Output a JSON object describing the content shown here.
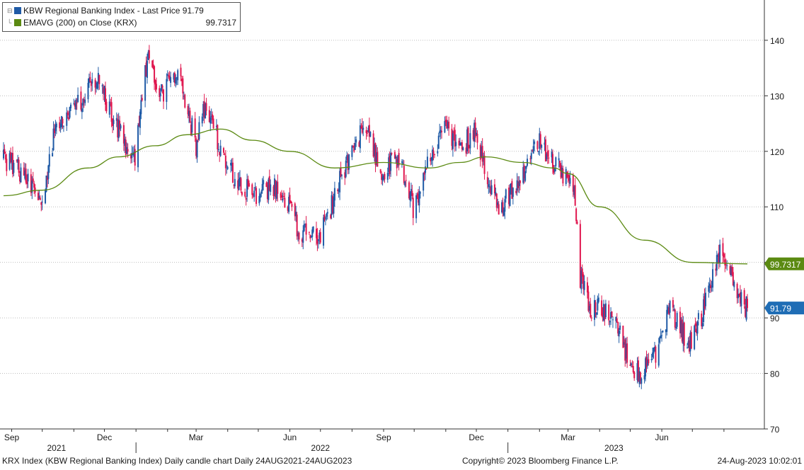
{
  "legend": {
    "price_label": "KBW Regional Banking Index - Last Price 91.79",
    "ema_label": "EMAVG (200)  on Close (KRX)",
    "ema_value": "99.7317"
  },
  "colors": {
    "up": "#1f5aa6",
    "down": "#e0174f",
    "ema": "#5b8a12",
    "last_price_tag": "#1f6db5",
    "ema_tag": "#5b8a12",
    "grid": "#bfbfbf"
  },
  "footer": {
    "left": "KRX Index (KBW Regional Banking Index) Daily candle chart  Daily 24AUG2021-24AUG2023",
    "center": "Copyright© 2023 Bloomberg Finance L.P.",
    "right": "24-Aug-2023 10:02:01"
  },
  "chart_data": {
    "type": "candlestick",
    "period": "Daily 24AUG2021-24AUG2023",
    "title": "",
    "xlabel": "",
    "ylabel": "",
    "ylim": [
      70,
      147
    ],
    "y_ticks": [
      70,
      80,
      90,
      110,
      120,
      130,
      140
    ],
    "y_tick_labels": [
      "70",
      "80",
      "90",
      "110",
      "120",
      "130",
      "140"
    ],
    "grid": "horizontal dotted",
    "axis_side": "right",
    "x_range": [
      "2021-08-24",
      "2023-08-24"
    ],
    "x_month_ticks": [
      {
        "label": "Sep",
        "date": "2021-09-01"
      },
      {
        "label": "Dec",
        "date": "2021-12-01"
      },
      {
        "label": "Mar",
        "date": "2022-03-01"
      },
      {
        "label": "Jun",
        "date": "2022-06-01"
      },
      {
        "label": "Sep",
        "date": "2022-09-01"
      },
      {
        "label": "Dec",
        "date": "2022-12-01"
      },
      {
        "label": "Mar",
        "date": "2023-03-01"
      },
      {
        "label": "Jun",
        "date": "2023-06-01"
      }
    ],
    "x_year_labels": [
      {
        "label": "2021",
        "date": "2021-10-15"
      },
      {
        "label": "2022",
        "date": "2022-07-01"
      },
      {
        "label": "2023",
        "date": "2023-04-15"
      }
    ],
    "x_year_dividers": [
      "2022-01-01",
      "2023-01-01"
    ],
    "price_path": [
      {
        "date": "2021-08-24",
        "close": 119
      },
      {
        "date": "2021-09-10",
        "close": 116
      },
      {
        "date": "2021-09-30",
        "close": 111
      },
      {
        "date": "2021-10-15",
        "close": 125
      },
      {
        "date": "2021-11-05",
        "close": 129
      },
      {
        "date": "2021-11-25",
        "close": 133
      },
      {
        "date": "2021-12-10",
        "close": 126
      },
      {
        "date": "2021-12-30",
        "close": 118
      },
      {
        "date": "2022-01-12",
        "close": 137
      },
      {
        "date": "2022-01-25",
        "close": 130
      },
      {
        "date": "2022-02-10",
        "close": 135
      },
      {
        "date": "2022-03-01",
        "close": 121
      },
      {
        "date": "2022-03-10",
        "close": 128
      },
      {
        "date": "2022-04-01",
        "close": 117
      },
      {
        "date": "2022-04-25",
        "close": 112
      },
      {
        "date": "2022-05-20",
        "close": 114
      },
      {
        "date": "2022-06-10",
        "close": 106
      },
      {
        "date": "2022-06-30",
        "close": 104
      },
      {
        "date": "2022-07-15",
        "close": 112
      },
      {
        "date": "2022-08-05",
        "close": 122
      },
      {
        "date": "2022-08-15",
        "close": 125
      },
      {
        "date": "2022-08-30",
        "close": 116
      },
      {
        "date": "2022-09-15",
        "close": 119
      },
      {
        "date": "2022-09-30",
        "close": 110
      },
      {
        "date": "2022-10-15",
        "close": 118
      },
      {
        "date": "2022-11-01",
        "close": 124
      },
      {
        "date": "2022-11-15",
        "close": 120
      },
      {
        "date": "2022-11-30",
        "close": 124
      },
      {
        "date": "2022-12-10",
        "close": 116
      },
      {
        "date": "2022-12-22",
        "close": 110
      },
      {
        "date": "2023-01-15",
        "close": 115
      },
      {
        "date": "2023-01-31",
        "close": 122
      },
      {
        "date": "2023-02-15",
        "close": 118
      },
      {
        "date": "2023-03-07",
        "close": 114
      },
      {
        "date": "2023-03-13",
        "close": 97
      },
      {
        "date": "2023-03-22",
        "close": 92
      },
      {
        "date": "2023-04-15",
        "close": 91
      },
      {
        "date": "2023-05-04",
        "close": 79
      },
      {
        "date": "2023-05-25",
        "close": 83
      },
      {
        "date": "2023-06-10",
        "close": 92
      },
      {
        "date": "2023-06-27",
        "close": 85
      },
      {
        "date": "2023-07-10",
        "close": 90
      },
      {
        "date": "2023-07-27",
        "close": 102
      },
      {
        "date": "2023-08-05",
        "close": 100
      },
      {
        "date": "2023-08-14",
        "close": 94
      },
      {
        "date": "2023-08-24",
        "close": 91.79
      }
    ],
    "ema_200_path": [
      {
        "date": "2021-08-24",
        "value": 112
      },
      {
        "date": "2021-10-01",
        "value": 113
      },
      {
        "date": "2021-11-15",
        "value": 117
      },
      {
        "date": "2021-12-15",
        "value": 119
      },
      {
        "date": "2022-01-20",
        "value": 121
      },
      {
        "date": "2022-02-20",
        "value": 123
      },
      {
        "date": "2022-03-25",
        "value": 124
      },
      {
        "date": "2022-04-25",
        "value": 122
      },
      {
        "date": "2022-06-01",
        "value": 120
      },
      {
        "date": "2022-07-15",
        "value": 117
      },
      {
        "date": "2022-09-01",
        "value": 118
      },
      {
        "date": "2022-10-15",
        "value": 117
      },
      {
        "date": "2022-11-15",
        "value": 118
      },
      {
        "date": "2022-12-10",
        "value": 119
      },
      {
        "date": "2023-01-15",
        "value": 118
      },
      {
        "date": "2023-02-15",
        "value": 117
      },
      {
        "date": "2023-03-01",
        "value": 116
      },
      {
        "date": "2023-04-01",
        "value": 110
      },
      {
        "date": "2023-05-15",
        "value": 104
      },
      {
        "date": "2023-07-01",
        "value": 100
      },
      {
        "date": "2023-08-24",
        "value": 99.73
      }
    ],
    "series": [
      {
        "name": "KBW Regional Banking Index",
        "kind": "candle",
        "last": 91.79,
        "last_label": "91.79"
      },
      {
        "name": "EMAVG (200)  on Close (KRX)",
        "kind": "line",
        "last": 99.7317,
        "last_label": "99.7317"
      }
    ]
  }
}
